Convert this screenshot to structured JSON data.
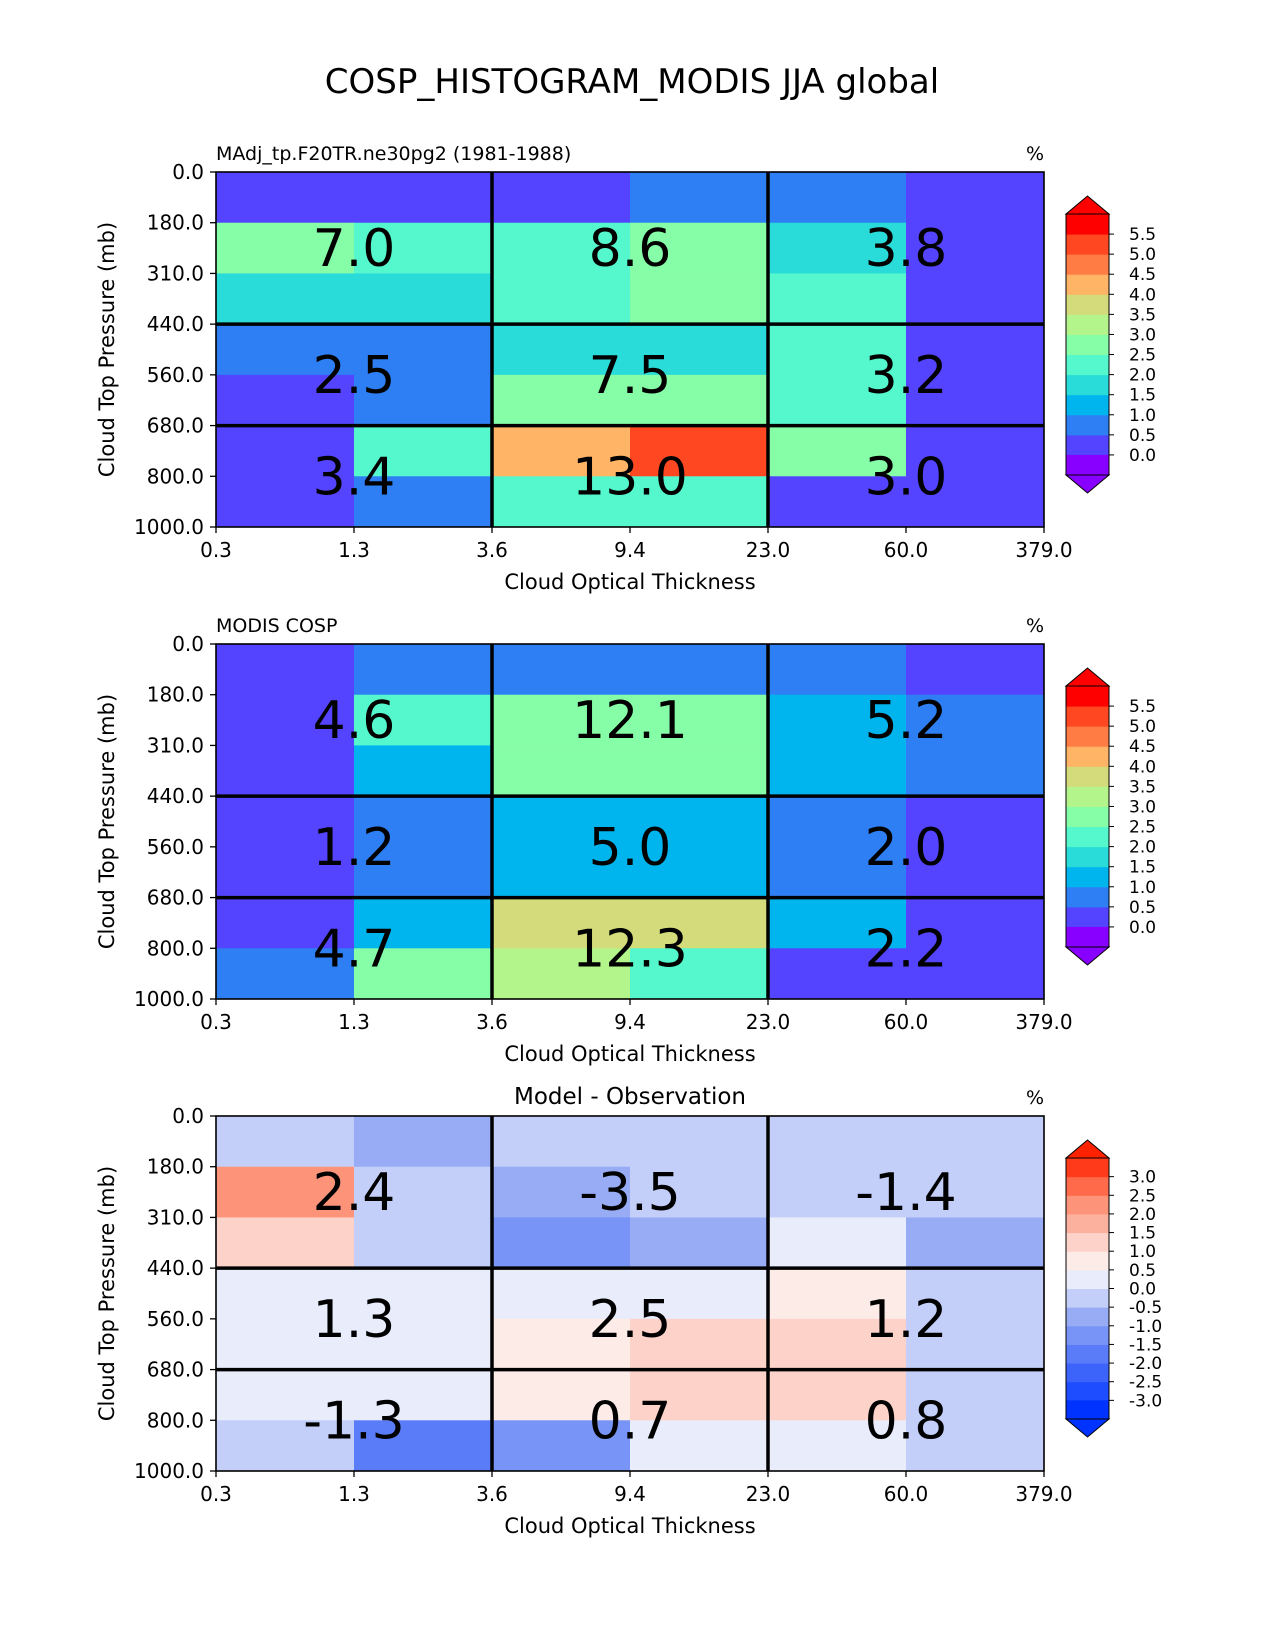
{
  "figure": {
    "title": "COSP_HISTOGRAM_MODIS JJA global"
  },
  "axes": {
    "xlabel": "Cloud Optical Thickness",
    "ylabel": "Cloud Top Pressure (mb)",
    "x_ticks": [
      "0.3",
      "1.3",
      "3.6",
      "9.4",
      "23.0",
      "60.0",
      "379.0"
    ],
    "y_ticks": [
      "0.0",
      "180.0",
      "310.0",
      "440.0",
      "560.0",
      "680.0",
      "800.0",
      "1000.0"
    ]
  },
  "chart_data": [
    {
      "type": "heatmap",
      "title_left": "MAdj_tp.F20TR.ne30pg2 (1981-1988)",
      "title_center": "",
      "units": "%",
      "x_bins": [
        "0.3",
        "1.3",
        "3.6",
        "9.4",
        "23.0",
        "60.0",
        "379.0"
      ],
      "y_bins": [
        "0.0",
        "180.0",
        "310.0",
        "440.0",
        "560.0",
        "680.0",
        "800.0",
        "1000.0"
      ],
      "values": [
        [
          0.3,
          0.3,
          0.3,
          0.8,
          0.8,
          0.3
        ],
        [
          2.8,
          2.3,
          2.3,
          2.6,
          1.8,
          0.3
        ],
        [
          1.6,
          1.6,
          2.3,
          2.6,
          2.3,
          0.3
        ],
        [
          0.8,
          0.8,
          1.6,
          1.6,
          2.2,
          0.3
        ],
        [
          0.3,
          0.8,
          2.6,
          2.8,
          2.2,
          0.3
        ],
        [
          0.3,
          2.2,
          4.2,
          5.2,
          2.6,
          0.3
        ],
        [
          0.3,
          0.8,
          2.2,
          2.2,
          0.3,
          0.3
        ]
      ],
      "box_values": [
        [
          "7.0",
          "8.6",
          "3.8"
        ],
        [
          "2.5",
          "7.5",
          "3.2"
        ],
        [
          "3.4",
          "13.0",
          "3.0"
        ]
      ],
      "colorbar": {
        "ticks": [
          "0.0",
          "0.5",
          "1.0",
          "1.5",
          "2.0",
          "2.5",
          "3.0",
          "3.5",
          "4.0",
          "4.5",
          "5.0",
          "5.5"
        ],
        "colors": [
          "#5544ff",
          "#2e7ff3",
          "#00b4ee",
          "#2adcd9",
          "#55f7cc",
          "#86fda7",
          "#b4f58b",
          "#d4db7a",
          "#ffb565",
          "#ff7c45",
          "#ff4822",
          "#ff0000"
        ],
        "under_color": "#8800ff",
        "over_color": "#ff0000"
      }
    },
    {
      "type": "heatmap",
      "title_left": "MODIS COSP",
      "title_center": "",
      "units": "%",
      "x_bins": [
        "0.3",
        "1.3",
        "3.6",
        "9.4",
        "23.0",
        "60.0",
        "379.0"
      ],
      "y_bins": [
        "0.0",
        "180.0",
        "310.0",
        "440.0",
        "560.0",
        "680.0",
        "800.0",
        "1000.0"
      ],
      "values": [
        [
          0.3,
          0.8,
          0.8,
          0.8,
          0.8,
          0.3
        ],
        [
          0.3,
          2.2,
          2.8,
          2.8,
          1.2,
          0.8
        ],
        [
          0.3,
          1.2,
          2.8,
          2.8,
          1.2,
          0.8
        ],
        [
          0.3,
          0.8,
          1.2,
          1.2,
          0.8,
          0.3
        ],
        [
          0.3,
          0.8,
          1.2,
          1.2,
          0.8,
          0.3
        ],
        [
          0.3,
          1.2,
          3.8,
          3.8,
          1.2,
          0.3
        ],
        [
          0.8,
          2.8,
          3.3,
          2.2,
          0.3,
          0.3
        ]
      ],
      "box_values": [
        [
          "4.6",
          "12.1",
          "5.2"
        ],
        [
          "1.2",
          "5.0",
          "2.0"
        ],
        [
          "4.7",
          "12.3",
          "2.2"
        ]
      ],
      "colorbar": {
        "ticks": [
          "0.0",
          "0.5",
          "1.0",
          "1.5",
          "2.0",
          "2.5",
          "3.0",
          "3.5",
          "4.0",
          "4.5",
          "5.0",
          "5.5"
        ],
        "colors": [
          "#5544ff",
          "#2e7ff3",
          "#00b4ee",
          "#2adcd9",
          "#55f7cc",
          "#86fda7",
          "#b4f58b",
          "#d4db7a",
          "#ffb565",
          "#ff7c45",
          "#ff4822",
          "#ff0000"
        ],
        "under_color": "#8800ff",
        "over_color": "#ff0000"
      }
    },
    {
      "type": "heatmap",
      "title_left": "",
      "title_center": "Model - Observation",
      "units": "%",
      "x_bins": [
        "0.3",
        "1.3",
        "3.6",
        "9.4",
        "23.0",
        "60.0",
        "379.0"
      ],
      "y_bins": [
        "0.0",
        "180.0",
        "310.0",
        "440.0",
        "560.0",
        "680.0",
        "800.0",
        "1000.0"
      ],
      "values": [
        [
          -0.2,
          -0.7,
          -0.2,
          -0.2,
          -0.2,
          -0.2
        ],
        [
          2.2,
          -0.2,
          -0.7,
          -0.2,
          -0.2,
          -0.2
        ],
        [
          1.2,
          -0.2,
          -1.2,
          -0.7,
          0.2,
          -0.7
        ],
        [
          0.2,
          0.2,
          0.2,
          0.2,
          0.7,
          -0.2
        ],
        [
          0.2,
          0.2,
          0.7,
          1.2,
          1.2,
          -0.2
        ],
        [
          0.2,
          0.2,
          0.7,
          1.2,
          1.2,
          -0.2
        ],
        [
          -0.2,
          -1.7,
          -1.2,
          0.2,
          0.2,
          -0.2
        ]
      ],
      "box_values": [
        [
          "2.4",
          "-3.5",
          "-1.4"
        ],
        [
          "1.3",
          "2.5",
          "1.2"
        ],
        [
          "-1.3",
          "0.7",
          "0.8"
        ]
      ],
      "colorbar": {
        "ticks": [
          "-3.0",
          "-2.5",
          "-2.0",
          "-1.5",
          "-1.0",
          "-0.5",
          "0.0",
          "0.5",
          "1.0",
          "1.5",
          "2.0",
          "2.5",
          "3.0"
        ],
        "colors": [
          "#1e4cff",
          "#3c64fb",
          "#5a7cf8",
          "#7894f6",
          "#97acf4",
          "#c3cff9",
          "#e8ecfb",
          "#fdebe8",
          "#fcd2c9",
          "#fcb19f",
          "#fd9479",
          "#fe6a4a",
          "#ff3a1a"
        ],
        "under_color": "#0033ff",
        "over_color": "#ff2200"
      }
    }
  ]
}
